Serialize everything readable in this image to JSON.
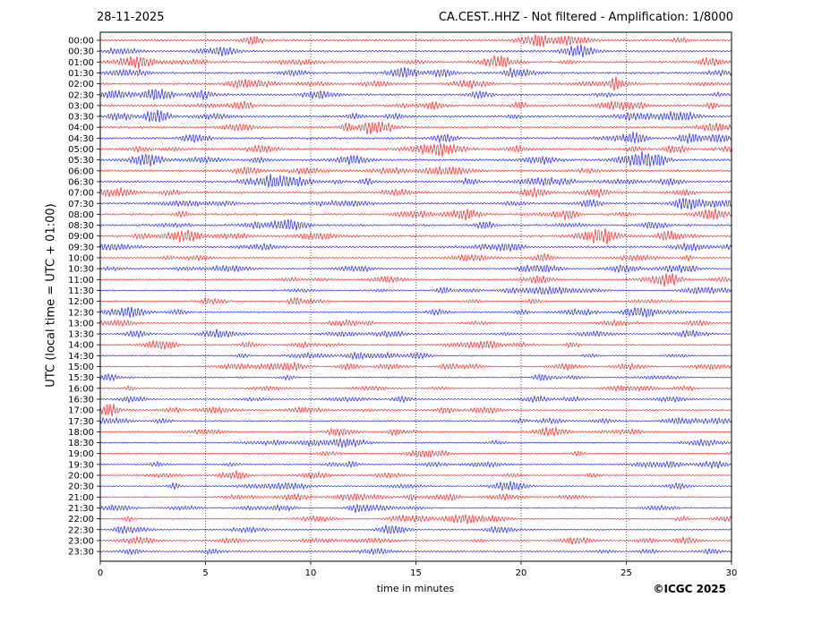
{
  "header": {
    "date": "28-11-2025",
    "title": "CA.CEST..HHZ - Not filtered - Amplification: 1/8000"
  },
  "footer": {
    "copyright": "©ICGC 2025"
  },
  "chart_data": {
    "type": "line",
    "title": "CA.CEST..HHZ - Not filtered - Amplification: 1/8000",
    "subtitle": "28-11-2025",
    "xlabel": "time in minutes",
    "ylabel": "UTC (local time = UTC + 01:00)",
    "xlim": [
      0,
      30
    ],
    "x_ticks": [
      0,
      5,
      10,
      15,
      20,
      25,
      30
    ],
    "y_ticks": [
      "00:00",
      "00:30",
      "01:00",
      "01:30",
      "02:00",
      "02:30",
      "03:00",
      "03:30",
      "04:00",
      "04:30",
      "05:00",
      "05:30",
      "06:00",
      "06:30",
      "07:00",
      "07:30",
      "08:00",
      "08:30",
      "09:00",
      "09:30",
      "10:00",
      "10:30",
      "11:00",
      "11:30",
      "12:00",
      "12:30",
      "13:00",
      "13:30",
      "14:00",
      "14:30",
      "15:00",
      "15:30",
      "16:00",
      "16:30",
      "17:00",
      "17:30",
      "18:00",
      "18:30",
      "19:00",
      "19:30",
      "20:00",
      "20:30",
      "21:00",
      "21:30",
      "22:00",
      "22:30",
      "23:00",
      "23:30"
    ],
    "trace_colors": [
      "#ff0000",
      "#0000ff"
    ],
    "grid": "vertical dotted at x ticks",
    "y_inverted": true
  }
}
